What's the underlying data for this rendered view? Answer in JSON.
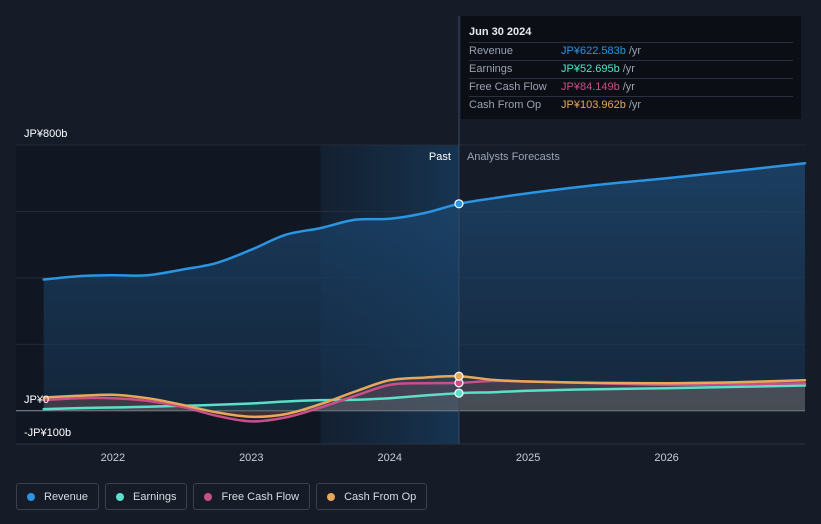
{
  "chart_data": {
    "type": "line",
    "y_axis": {
      "ylim": [
        -100,
        800
      ],
      "tick_labels": [
        {
          "value": 800,
          "label": "JP¥800b"
        },
        {
          "value": 0,
          "label": "JP¥0"
        },
        {
          "value": -100,
          "label": "-JP¥100b"
        }
      ],
      "gridlines": [
        0,
        200,
        400,
        600,
        800
      ]
    },
    "x_axis": {
      "xlim": [
        2021.3,
        2027.0
      ],
      "ticks": [
        {
          "value": 2022,
          "label": "2022"
        },
        {
          "value": 2023,
          "label": "2023"
        },
        {
          "value": 2024,
          "label": "2024"
        },
        {
          "value": 2025,
          "label": "2025"
        },
        {
          "value": 2026,
          "label": "2026"
        }
      ]
    },
    "past_label": "Past",
    "forecast_label": "Analysts Forecasts",
    "past_end": 2024.5,
    "highlight_start": 2023.5,
    "series": [
      {
        "name": "Revenue",
        "color": "#2b94e3",
        "points": [
          [
            2021.5,
            395
          ],
          [
            2021.75,
            405
          ],
          [
            2022.0,
            408
          ],
          [
            2022.25,
            408
          ],
          [
            2022.5,
            425
          ],
          [
            2022.75,
            445
          ],
          [
            2023.0,
            485
          ],
          [
            2023.25,
            530
          ],
          [
            2023.5,
            550
          ],
          [
            2023.75,
            575
          ],
          [
            2024.0,
            578
          ],
          [
            2024.25,
            595
          ],
          [
            2024.5,
            623
          ],
          [
            2024.75,
            640
          ],
          [
            2025.0,
            655
          ],
          [
            2025.5,
            680
          ],
          [
            2026.0,
            700
          ],
          [
            2026.5,
            722
          ],
          [
            2027.0,
            745
          ]
        ]
      },
      {
        "name": "Earnings",
        "color": "#5ae0c8",
        "points": [
          [
            2021.5,
            5
          ],
          [
            2021.75,
            8
          ],
          [
            2022.0,
            10
          ],
          [
            2022.25,
            12
          ],
          [
            2022.5,
            15
          ],
          [
            2022.75,
            18
          ],
          [
            2023.0,
            22
          ],
          [
            2023.25,
            28
          ],
          [
            2023.5,
            32
          ],
          [
            2023.75,
            33
          ],
          [
            2024.0,
            38
          ],
          [
            2024.25,
            46
          ],
          [
            2024.5,
            53
          ],
          [
            2024.75,
            56
          ],
          [
            2025.0,
            60
          ],
          [
            2025.5,
            65
          ],
          [
            2026.0,
            68
          ],
          [
            2026.5,
            72
          ],
          [
            2027.0,
            76
          ]
        ]
      },
      {
        "name": "Free Cash Flow",
        "color": "#c94f88",
        "points": [
          [
            2021.5,
            32
          ],
          [
            2021.75,
            38
          ],
          [
            2022.0,
            38
          ],
          [
            2022.25,
            30
          ],
          [
            2022.5,
            12
          ],
          [
            2022.75,
            -15
          ],
          [
            2023.0,
            -32
          ],
          [
            2023.25,
            -20
          ],
          [
            2023.5,
            10
          ],
          [
            2023.75,
            45
          ],
          [
            2024.0,
            78
          ],
          [
            2024.25,
            83
          ],
          [
            2024.5,
            84
          ],
          [
            2024.75,
            90
          ],
          [
            2025.0,
            88
          ],
          [
            2025.5,
            83
          ],
          [
            2026.0,
            78
          ],
          [
            2026.5,
            80
          ],
          [
            2027.0,
            83
          ]
        ]
      },
      {
        "name": "Cash From Op",
        "color": "#e8a85a",
        "points": [
          [
            2021.5,
            40
          ],
          [
            2021.75,
            45
          ],
          [
            2022.0,
            48
          ],
          [
            2022.25,
            38
          ],
          [
            2022.5,
            18
          ],
          [
            2022.75,
            -5
          ],
          [
            2023.0,
            -18
          ],
          [
            2023.25,
            -10
          ],
          [
            2023.5,
            20
          ],
          [
            2023.75,
            58
          ],
          [
            2024.0,
            92
          ],
          [
            2024.25,
            100
          ],
          [
            2024.5,
            104
          ],
          [
            2024.75,
            93
          ],
          [
            2025.0,
            88
          ],
          [
            2025.5,
            84
          ],
          [
            2026.0,
            83
          ],
          [
            2026.5,
            86
          ],
          [
            2027.0,
            92
          ]
        ]
      }
    ]
  },
  "tooltip": {
    "date": "Jun 30 2024",
    "rows": [
      {
        "label": "Revenue",
        "value": "JP¥622.583b",
        "unit": "/yr",
        "color": "#2b94e3"
      },
      {
        "label": "Earnings",
        "value": "JP¥52.695b",
        "unit": "/yr",
        "color": "#5ae0c8"
      },
      {
        "label": "Free Cash Flow",
        "value": "JP¥84.149b",
        "unit": "/yr",
        "color": "#c94f88"
      },
      {
        "label": "Cash From Op",
        "value": "JP¥103.962b",
        "unit": "/yr",
        "color": "#e8a85a"
      }
    ]
  },
  "legend": [
    {
      "label": "Revenue",
      "color": "#2b94e3"
    },
    {
      "label": "Earnings",
      "color": "#5ae0c8"
    },
    {
      "label": "Free Cash Flow",
      "color": "#c94f88"
    },
    {
      "label": "Cash From Op",
      "color": "#e8a85a"
    }
  ]
}
